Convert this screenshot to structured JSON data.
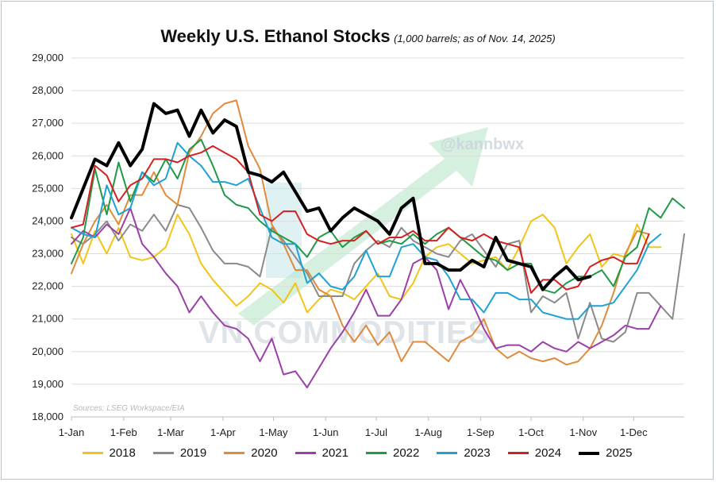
{
  "chart_data": {
    "type": "line",
    "title": "Weekly U.S. Ethanol Stocks",
    "subtitle": "(1,000 barrels; as of Nov. 14, 2025)",
    "source": "Sources: LSEG Workspace/EIA",
    "watermark_handle": "@kannbwx",
    "watermark_brand": "VN COMMODITIES",
    "xlabel": "",
    "ylabel": "",
    "ylim": [
      18000,
      29000
    ],
    "yticks": [
      18000,
      19000,
      20000,
      21000,
      22000,
      23000,
      24000,
      25000,
      26000,
      27000,
      28000,
      29000
    ],
    "ytick_labels": [
      "18,000",
      "19,000",
      "20,000",
      "21,000",
      "22,000",
      "23,000",
      "24,000",
      "25,000",
      "26,000",
      "27,000",
      "28,000",
      "29,000"
    ],
    "xlim": [
      1,
      53
    ],
    "xticks": [
      1,
      5.43,
      9.43,
      13.86,
      18.14,
      22.57,
      26.86,
      31.29,
      35.71,
      40,
      44.43,
      48.71
    ],
    "xtick_labels": [
      "1-Jan",
      "1-Feb",
      "1-Mar",
      "1-Apr",
      "1-May",
      "1-Jun",
      "1-Jul",
      "1-Aug",
      "1-Sep",
      "1-Oct",
      "1-Nov",
      "1-Dec"
    ],
    "grid": "horizontal",
    "legend_position": "bottom",
    "series": [
      {
        "name": "2018",
        "color": "#f2c418",
        "values": [
          23600,
          22700,
          23700,
          23000,
          23800,
          22900,
          22800,
          22900,
          23200,
          24200,
          23600,
          22700,
          22200,
          21800,
          21400,
          21700,
          22100,
          21900,
          21500,
          22100,
          21200,
          21600,
          21900,
          21800,
          21600,
          22000,
          22400,
          21700,
          21600,
          22100,
          22900,
          23200,
          23300,
          23000,
          22700,
          22800,
          22900,
          22500,
          23200,
          24000,
          24200,
          23800,
          22700,
          23200,
          23600,
          22600,
          23000,
          22900,
          23900,
          23200,
          23200
        ]
      },
      {
        "name": "2019",
        "color": "#8a8a8a",
        "values": [
          23500,
          23300,
          23600,
          24000,
          23400,
          23900,
          23700,
          24200,
          23700,
          24500,
          24400,
          23800,
          23100,
          22700,
          22700,
          22600,
          22300,
          23800,
          23400,
          22900,
          22400,
          21700,
          21700,
          21700,
          22700,
          23100,
          23400,
          23200,
          23800,
          23400,
          23200,
          23000,
          22900,
          23400,
          23600,
          23100,
          22600,
          23300,
          23400,
          21200,
          21700,
          21500,
          21800,
          20400,
          21500,
          20400,
          20300,
          20600,
          21800,
          21800,
          21400,
          21000,
          23600
        ]
      },
      {
        "name": "2020",
        "color": "#e08a3c",
        "values": [
          22400,
          23300,
          24000,
          24500,
          23900,
          24800,
          24800,
          25500,
          24800,
          24500,
          26100,
          26600,
          27300,
          27600,
          27700,
          26300,
          25600,
          23900,
          23300,
          22500,
          22500,
          21900,
          21700,
          20800,
          20300,
          20800,
          20200,
          20600,
          19700,
          20300,
          20300,
          20000,
          19700,
          20300,
          20500,
          21000,
          20100,
          19800,
          20000,
          19800,
          19700,
          19800,
          19600,
          19700,
          20100,
          20800,
          21800,
          23000,
          23700,
          23600
        ]
      },
      {
        "name": "2021",
        "color": "#9b3fa9",
        "values": [
          23300,
          23700,
          23500,
          23900,
          23600,
          24400,
          23300,
          22900,
          22400,
          22000,
          21200,
          21700,
          21200,
          20800,
          20700,
          20400,
          19700,
          20400,
          19300,
          19400,
          18900,
          19500,
          20100,
          20600,
          21200,
          21900,
          21100,
          21100,
          21600,
          22700,
          22900,
          22500,
          21300,
          22200,
          21500,
          20700,
          20100,
          20200,
          20200,
          20000,
          20300,
          20100,
          20000,
          20300,
          20100,
          20300,
          20500,
          20800,
          20700,
          20700,
          21400
        ]
      },
      {
        "name": "2022",
        "color": "#1f9a47",
        "values": [
          22700,
          23500,
          25600,
          24200,
          25800,
          24600,
          25500,
          25200,
          25900,
          25300,
          26200,
          26500,
          25700,
          24800,
          24500,
          24400,
          24000,
          23700,
          23500,
          23300,
          22900,
          23500,
          23700,
          23200,
          23500,
          23700,
          23300,
          23400,
          23300,
          23600,
          23300,
          23600,
          23800,
          23500,
          23200,
          22900,
          22800,
          22500,
          22700,
          22700,
          21900,
          21800,
          22100,
          22300,
          22300,
          22500,
          22000,
          22900,
          23200,
          24400,
          24100,
          24700,
          24400
        ]
      },
      {
        "name": "2023",
        "color": "#1ea1d4",
        "values": [
          23800,
          23600,
          23500,
          25100,
          24200,
          24400,
          25500,
          25100,
          25300,
          26400,
          26000,
          25700,
          25200,
          25200,
          25100,
          25300,
          24400,
          23500,
          23300,
          23300,
          22100,
          22400,
          22000,
          21900,
          22300,
          23100,
          22300,
          22300,
          23200,
          23300,
          22900,
          22800,
          22300,
          21600,
          21600,
          21200,
          21800,
          21800,
          21600,
          21600,
          21200,
          21100,
          21000,
          21000,
          21400,
          21400,
          21500,
          22000,
          22500,
          23300,
          23600
        ]
      },
      {
        "name": "2024",
        "color": "#d42020",
        "values": [
          23800,
          23900,
          25700,
          25400,
          24600,
          25100,
          25300,
          25900,
          25900,
          25800,
          26000,
          26100,
          26300,
          26100,
          25900,
          25500,
          24200,
          24000,
          24300,
          24300,
          23600,
          23400,
          23300,
          23400,
          23400,
          23700,
          23300,
          23500,
          23500,
          23700,
          23400,
          23400,
          23800,
          23500,
          23400,
          23600,
          23400,
          23300,
          23200,
          21800,
          22200,
          22200,
          21900,
          22000,
          22600,
          22800,
          22900,
          22700,
          22700,
          23600
        ]
      },
      {
        "name": "2025",
        "color": "#000000",
        "values": [
          24100,
          25000,
          25900,
          25700,
          26400,
          25700,
          26200,
          27600,
          27300,
          27400,
          26600,
          27400,
          26700,
          27100,
          26900,
          25500,
          25400,
          25200,
          25500,
          24900,
          24300,
          24400,
          23700,
          24100,
          24400,
          24200,
          24000,
          23600,
          24400,
          24700,
          22700,
          22700,
          22500,
          22500,
          22800,
          22600,
          23500,
          22800,
          22700,
          22600,
          21900,
          22300,
          22600,
          22200,
          22300
        ]
      }
    ]
  }
}
